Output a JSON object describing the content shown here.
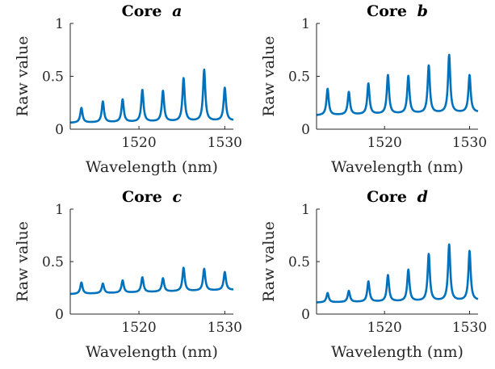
{
  "chart_data": [
    {
      "type": "line",
      "title": "Core",
      "title_letter": "a",
      "xlabel": "Wavelength (nm)",
      "ylabel": "Raw value",
      "xlim": [
        1512,
        1531
      ],
      "ylim": [
        0,
        1
      ],
      "xticks": [
        1520,
        1530
      ],
      "yticks": [
        0,
        0.5,
        1
      ],
      "ytick_labels": [
        "0",
        "0.5",
        "1"
      ],
      "grid": false,
      "color": "#0072BD",
      "baseline": [
        [
          1512,
          0.06
        ],
        [
          1531,
          0.08
        ]
      ],
      "peaks": [
        {
          "x": 1513.3,
          "y": 0.2
        },
        {
          "x": 1515.8,
          "y": 0.26
        },
        {
          "x": 1518.1,
          "y": 0.28
        },
        {
          "x": 1520.4,
          "y": 0.37
        },
        {
          "x": 1522.8,
          "y": 0.36
        },
        {
          "x": 1525.2,
          "y": 0.48
        },
        {
          "x": 1527.6,
          "y": 0.56
        },
        {
          "x": 1530.0,
          "y": 0.39
        }
      ]
    },
    {
      "type": "line",
      "title": "Core",
      "title_letter": "b",
      "xlabel": "Wavelength (nm)",
      "ylabel": "Raw value",
      "xlim": [
        1512,
        1531
      ],
      "ylim": [
        0,
        1
      ],
      "xticks": [
        1520,
        1530
      ],
      "yticks": [
        0,
        0.5,
        1
      ],
      "ytick_labels": [
        "0",
        "0.5",
        "1"
      ],
      "grid": false,
      "color": "#0072BD",
      "baseline": [
        [
          1512,
          0.13
        ],
        [
          1531,
          0.16
        ]
      ],
      "peaks": [
        {
          "x": 1513.3,
          "y": 0.38
        },
        {
          "x": 1515.8,
          "y": 0.35
        },
        {
          "x": 1518.1,
          "y": 0.43
        },
        {
          "x": 1520.4,
          "y": 0.51
        },
        {
          "x": 1522.8,
          "y": 0.5
        },
        {
          "x": 1525.2,
          "y": 0.6
        },
        {
          "x": 1527.6,
          "y": 0.7
        },
        {
          "x": 1530.0,
          "y": 0.51
        }
      ]
    },
    {
      "type": "line",
      "title": "Core",
      "title_letter": "c",
      "xlabel": "Wavelength (nm)",
      "ylabel": "Raw value",
      "xlim": [
        1512,
        1531
      ],
      "ylim": [
        0,
        1
      ],
      "xticks": [
        1520,
        1530
      ],
      "yticks": [
        0,
        0.5,
        1
      ],
      "ytick_labels": [
        "0",
        "0.5",
        "1"
      ],
      "grid": false,
      "color": "#0072BD",
      "baseline": [
        [
          1512,
          0.19
        ],
        [
          1531,
          0.23
        ]
      ],
      "peaks": [
        {
          "x": 1513.3,
          "y": 0.3
        },
        {
          "x": 1515.8,
          "y": 0.29
        },
        {
          "x": 1518.1,
          "y": 0.32
        },
        {
          "x": 1520.4,
          "y": 0.35
        },
        {
          "x": 1522.8,
          "y": 0.34
        },
        {
          "x": 1525.2,
          "y": 0.44
        },
        {
          "x": 1527.6,
          "y": 0.43
        },
        {
          "x": 1530.0,
          "y": 0.4
        }
      ]
    },
    {
      "type": "line",
      "title": "Core",
      "title_letter": "d",
      "xlabel": "Wavelength (nm)",
      "ylabel": "Raw value",
      "xlim": [
        1512,
        1531
      ],
      "ylim": [
        0,
        1
      ],
      "xticks": [
        1520,
        1530
      ],
      "yticks": [
        0,
        0.5,
        1
      ],
      "ytick_labels": [
        "0",
        "0.5",
        "1"
      ],
      "grid": false,
      "color": "#0072BD",
      "baseline": [
        [
          1512,
          0.11
        ],
        [
          1531,
          0.13
        ]
      ],
      "peaks": [
        {
          "x": 1513.3,
          "y": 0.2
        },
        {
          "x": 1515.8,
          "y": 0.22
        },
        {
          "x": 1518.1,
          "y": 0.31
        },
        {
          "x": 1520.4,
          "y": 0.37
        },
        {
          "x": 1522.8,
          "y": 0.42
        },
        {
          "x": 1525.2,
          "y": 0.57
        },
        {
          "x": 1527.6,
          "y": 0.66
        },
        {
          "x": 1530.0,
          "y": 0.6
        }
      ]
    }
  ]
}
